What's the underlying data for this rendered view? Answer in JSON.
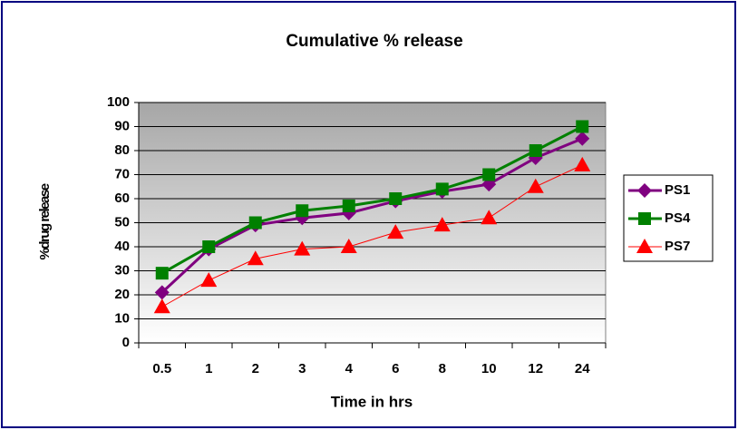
{
  "chart_data": {
    "type": "line",
    "title": "Cumulative % release",
    "x_label": "Time in hrs",
    "y_label": "%drug release",
    "categories": [
      "0.5",
      "1",
      "2",
      "3",
      "4",
      "6",
      "8",
      "10",
      "12",
      "24"
    ],
    "series": [
      {
        "name": "PS1",
        "color": "#800080",
        "marker": "diamond",
        "values": [
          21,
          39,
          49,
          52,
          54,
          59,
          63,
          66,
          77,
          85
        ]
      },
      {
        "name": "PS4",
        "color": "#008000",
        "marker": "square",
        "values": [
          29,
          40,
          50,
          55,
          57,
          60,
          64,
          70,
          80,
          90
        ]
      },
      {
        "name": "PS7",
        "color": "#ff0000",
        "marker": "triangle",
        "values": [
          15,
          26,
          35,
          39,
          40,
          46,
          49,
          52,
          65,
          74
        ]
      }
    ],
    "ylim": [
      0,
      100
    ],
    "yticks": [
      0,
      10,
      20,
      30,
      40,
      50,
      60,
      70,
      80,
      90,
      100
    ],
    "grid": true,
    "legend": "right"
  }
}
